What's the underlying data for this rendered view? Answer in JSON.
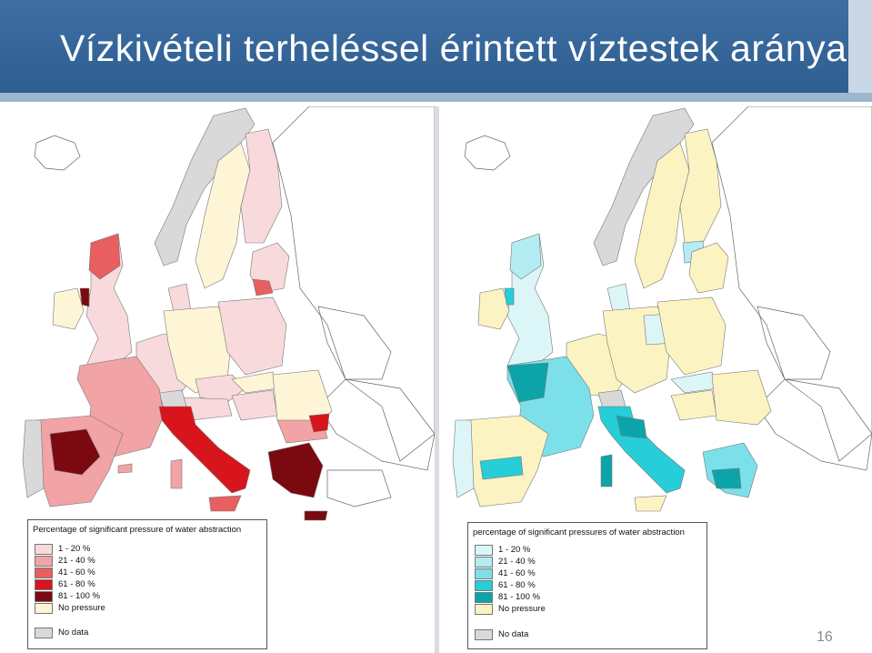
{
  "slide": {
    "title": "Vízkivételi terheléssel érintett víztestek aránya",
    "page_number": "16"
  },
  "left_map": {
    "legend_title": "Percentage of significant pressure of water abstraction",
    "items": [
      {
        "label": "1 - 20 %",
        "color": "#f8d9dc"
      },
      {
        "label": "21 - 40 %",
        "color": "#f1a3a6"
      },
      {
        "label": "41 - 60 %",
        "color": "#e95e5e"
      },
      {
        "label": "61 - 80 %",
        "color": "#d8141c"
      },
      {
        "label": "81 - 100 %",
        "color": "#7a0a10"
      },
      {
        "label": "No pressure",
        "color": "#fdf5d5"
      }
    ],
    "no_data": {
      "label": "No data",
      "color": "#d9d9d9"
    }
  },
  "right_map": {
    "legend_title": "percentage of significant pressures of water abstraction",
    "items": [
      {
        "label": "1 - 20 %",
        "color": "#dcf6f8"
      },
      {
        "label": "21 - 40 %",
        "color": "#b3ecf2"
      },
      {
        "label": "41 - 60 %",
        "color": "#7ce0ea"
      },
      {
        "label": "61 - 80 %",
        "color": "#27cdd8"
      },
      {
        "label": "81 - 100 %",
        "color": "#0da4a9"
      },
      {
        "label": "No pressure",
        "color": "#fcf3c2"
      }
    ],
    "no_data": {
      "label": "No data",
      "color": "#d9d9d9"
    }
  }
}
